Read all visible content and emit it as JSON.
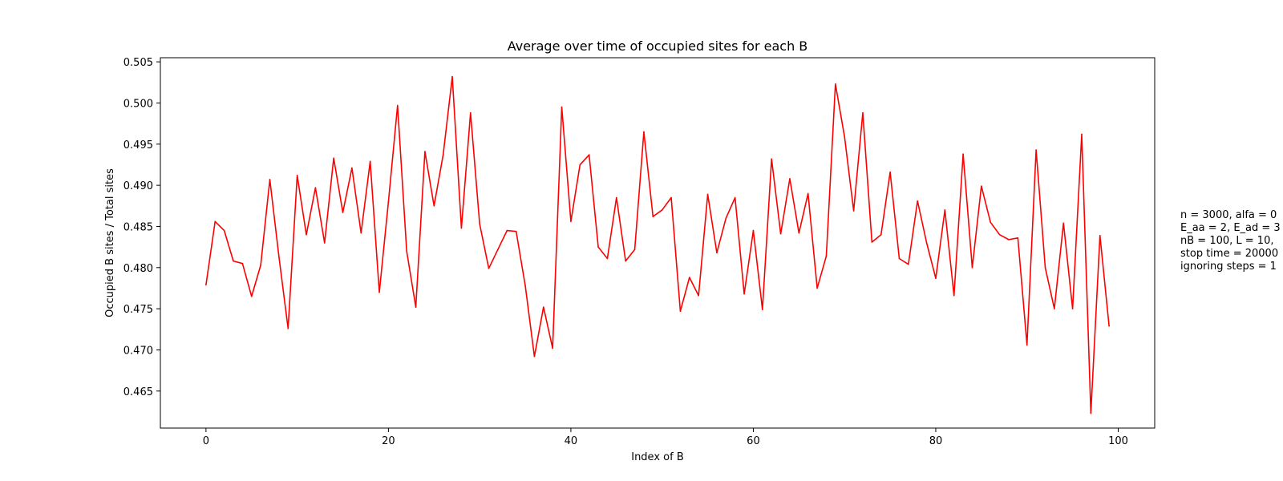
{
  "chart_data": {
    "type": "line",
    "title": "Average over time of occupied sites for each B",
    "xlabel": "Index of B",
    "ylabel": "Occupied B sites / Total sites",
    "xlim": [
      -5,
      104
    ],
    "ylim": [
      0.4605,
      0.5055
    ],
    "xticks": [
      0,
      20,
      40,
      60,
      80,
      100
    ],
    "yticks": [
      0.465,
      0.47,
      0.475,
      0.48,
      0.485,
      0.49,
      0.495,
      0.5,
      0.505
    ],
    "grid": false,
    "series": [
      {
        "color": "#ff0000",
        "x": [
          0,
          1,
          2,
          3,
          4,
          5,
          6,
          7,
          8,
          9,
          10,
          11,
          12,
          13,
          14,
          15,
          16,
          17,
          18,
          19,
          20,
          21,
          22,
          23,
          24,
          25,
          26,
          27,
          28,
          29,
          30,
          31,
          32,
          33,
          34,
          35,
          36,
          37,
          38,
          39,
          40,
          41,
          42,
          43,
          44,
          45,
          46,
          47,
          48,
          49,
          50,
          51,
          52,
          53,
          54,
          55,
          56,
          57,
          58,
          59,
          60,
          61,
          62,
          63,
          64,
          65,
          66,
          67,
          68,
          69,
          70,
          71,
          72,
          73,
          74,
          75,
          76,
          77,
          78,
          79,
          80,
          81,
          82,
          83,
          84,
          85,
          86,
          87,
          88,
          89,
          90,
          91,
          92,
          93,
          94,
          95,
          96,
          97,
          98,
          99
        ],
        "values": [
          0.4779,
          0.4856,
          0.4845,
          0.4808,
          0.4805,
          0.4765,
          0.4803,
          0.4907,
          0.4813,
          0.4726,
          0.4912,
          0.484,
          0.4897,
          0.483,
          0.4933,
          0.4867,
          0.4921,
          0.4842,
          0.4929,
          0.477,
          0.488,
          0.4997,
          0.482,
          0.4752,
          0.4941,
          0.4875,
          0.4937,
          0.5032,
          0.4848,
          0.4988,
          0.4853,
          0.4799,
          0.4822,
          0.4845,
          0.4844,
          0.4778,
          0.4692,
          0.4752,
          0.4702,
          0.4995,
          0.4856,
          0.4925,
          0.4937,
          0.4825,
          0.4811,
          0.4885,
          0.4808,
          0.4822,
          0.4965,
          0.4862,
          0.487,
          0.4885,
          0.4747,
          0.4788,
          0.4766,
          0.4889,
          0.4818,
          0.486,
          0.4885,
          0.4768,
          0.4845,
          0.4749,
          0.4932,
          0.4841,
          0.4908,
          0.4842,
          0.489,
          0.4775,
          0.4814,
          0.5023,
          0.4959,
          0.4869,
          0.4988,
          0.4831,
          0.484,
          0.4916,
          0.4811,
          0.4804,
          0.4881,
          0.483,
          0.4787,
          0.487,
          0.4766,
          0.4938,
          0.48,
          0.4899,
          0.4855,
          0.484,
          0.4834,
          0.4836,
          0.4706,
          0.4943,
          0.48,
          0.475,
          0.4854,
          0.475,
          0.4962,
          0.4623,
          0.4839,
          0.4729
        ]
      }
    ],
    "annotation_lines": [
      "n = 3000, alfa = 0",
      "E_aa = 2, E_ad = 3",
      "nB = 100, L = 10,",
      "stop time = 20000",
      "ignoring steps = 1"
    ]
  }
}
